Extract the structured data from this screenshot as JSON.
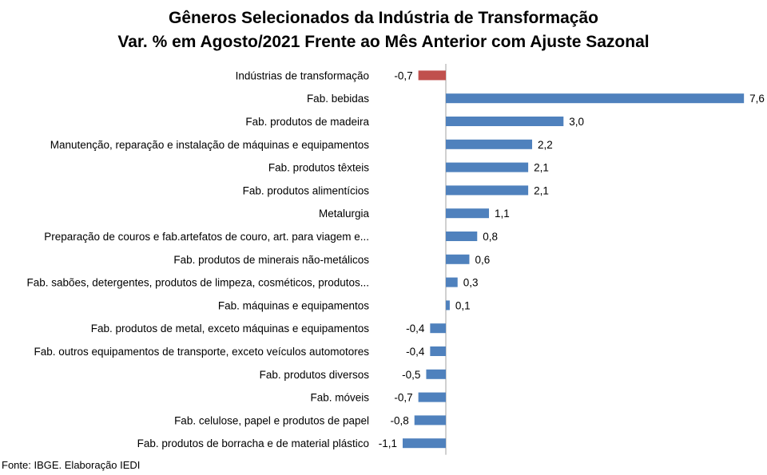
{
  "chart_data": {
    "type": "bar",
    "orientation": "horizontal",
    "title": "Gêneros Selecionados da Indústria de Transformação",
    "subtitle": "Var. % em Agosto/2021 Frente ao Mês Anterior com Ajuste Sazonal",
    "categories": [
      "Indústrias de transformação",
      "Fab. bebidas",
      "Fab. produtos de madeira",
      "Manutenção, reparação e instalação de máquinas e equipamentos",
      "Fab. produtos têxteis",
      "Fab. produtos alimentícios",
      "Metalurgia",
      "Preparação de couros e fab.artefatos de couro, art. para viagem e...",
      "Fab. produtos de minerais não-metálicos",
      "Fab. sabões, detergentes, produtos de limpeza, cosméticos, produtos...",
      "Fab. máquinas e equipamentos",
      "Fab. produtos de metal, exceto máquinas e equipamentos",
      "Fab. outros equipamentos de transporte, exceto veículos automotores",
      "Fab. produtos diversos",
      "Fab. móveis",
      "Fab. celulose, papel e produtos de papel",
      "Fab. produtos de borracha e de material plástico"
    ],
    "values": [
      -0.7,
      7.6,
      3.0,
      2.2,
      2.1,
      2.1,
      1.1,
      0.8,
      0.6,
      0.3,
      0.1,
      -0.4,
      -0.4,
      -0.5,
      -0.7,
      -0.8,
      -1.1
    ],
    "value_labels": [
      "-0,7",
      "7,6",
      "3,0",
      "2,2",
      "2,1",
      "2,1",
      "1,1",
      "0,8",
      "0,6",
      "0,3",
      "0,1",
      "-0,4",
      "-0,4",
      "-0,5",
      "-0,7",
      "-0,8",
      "-1,1"
    ],
    "xlim": [
      -1.1,
      7.6
    ],
    "grid": false,
    "legend": "none",
    "colors": {
      "highlight": "#C0504D",
      "default": "#4F81BD",
      "axis": "#A0A0A0"
    },
    "highlight_index": 0
  },
  "footer": {
    "source": "Fonte: IBGE. Elaboração IEDI"
  }
}
